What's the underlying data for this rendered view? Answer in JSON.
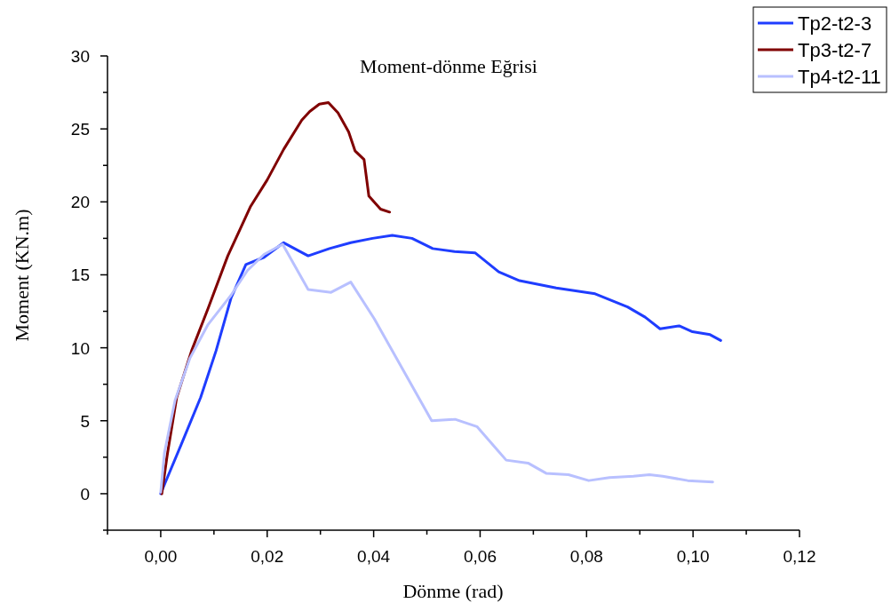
{
  "chart_data": {
    "type": "line",
    "title": "Moment-dönme Eğrisi",
    "xlabel": "Dönme (rad)",
    "ylabel": "Moment (KN.m)",
    "xlim": [
      -0.01,
      0.12
    ],
    "ylim": [
      -2.5,
      30
    ],
    "xticks": [
      {
        "value": -0.01,
        "label": null
      },
      {
        "value": 0,
        "label": "0,00"
      },
      {
        "value": 0.01,
        "label": null
      },
      {
        "value": 0.02,
        "label": "0,02"
      },
      {
        "value": 0.03,
        "label": null
      },
      {
        "value": 0.04,
        "label": "0,04"
      },
      {
        "value": 0.05,
        "label": null
      },
      {
        "value": 0.06,
        "label": "0,06"
      },
      {
        "value": 0.07,
        "label": null
      },
      {
        "value": 0.08,
        "label": "0,08"
      },
      {
        "value": 0.09,
        "label": null
      },
      {
        "value": 0.1,
        "label": "0,10"
      },
      {
        "value": 0.11,
        "label": null
      },
      {
        "value": 0.12,
        "label": "0,12"
      }
    ],
    "yticks": [
      {
        "value": -2.5,
        "label": null
      },
      0,
      {
        "value": 2.5,
        "label": null
      },
      5,
      {
        "value": 7.5,
        "label": null
      },
      10,
      {
        "value": 12.5,
        "label": null
      },
      15,
      {
        "value": 17.5,
        "label": null
      },
      20,
      {
        "value": 22.5,
        "label": null
      },
      25,
      {
        "value": 27.5,
        "label": null
      },
      30
    ],
    "legend": "top right",
    "grid": false,
    "marker": "none",
    "line_style": "solid",
    "series": [
      {
        "name": "Tp2-t2-3",
        "color": "#1f3dff",
        "x": [
          0,
          0.0009,
          0.004,
          0.0075,
          0.0104,
          0.0132,
          0.016,
          0.0194,
          0.0231,
          0.0277,
          0.0317,
          0.0357,
          0.0398,
          0.0435,
          0.0472,
          0.0511,
          0.0552,
          0.0591,
          0.0635,
          0.0674,
          0.0743,
          0.0816,
          0.0877,
          0.091,
          0.0938,
          0.0974,
          0.0999,
          0.1032,
          0.1052
        ],
        "values": [
          0,
          0.8,
          3.5,
          6.6,
          9.8,
          13.4,
          15.7,
          16.2,
          17.2,
          16.3,
          16.8,
          17.2,
          17.5,
          17.7,
          17.5,
          16.8,
          16.6,
          16.5,
          15.2,
          14.6,
          14.1,
          13.7,
          12.8,
          12.1,
          11.3,
          11.5,
          11.1,
          10.9,
          10.5
        ]
      },
      {
        "name": "Tp3-t2-7",
        "color": "#800000",
        "x": [
          0.0002,
          0.0012,
          0.003,
          0.0058,
          0.0089,
          0.0126,
          0.0169,
          0.02,
          0.0231,
          0.0265,
          0.028,
          0.0298,
          0.0315,
          0.0333,
          0.0353,
          0.0365,
          0.0382,
          0.0391,
          0.0413,
          0.043
        ],
        "values": [
          0,
          2.6,
          6.6,
          9.8,
          12.7,
          16.3,
          19.7,
          21.5,
          23.6,
          25.6,
          26.2,
          26.7,
          26.8,
          26.1,
          24.8,
          23.5,
          22.9,
          20.4,
          19.5,
          19.3
        ]
      },
      {
        "name": "Tp4-t2-11",
        "color": "#b8c0ff",
        "x": [
          0,
          0.0007,
          0.0027,
          0.0055,
          0.0089,
          0.0132,
          0.0163,
          0.0194,
          0.0229,
          0.0277,
          0.032,
          0.0357,
          0.0401,
          0.0509,
          0.0553,
          0.0594,
          0.0649,
          0.069,
          0.0724,
          0.0766,
          0.0804,
          0.0843,
          0.0888,
          0.0918,
          0.0943,
          0.099,
          0.1037
        ],
        "values": [
          0.1,
          2.8,
          6.4,
          9.3,
          11.6,
          13.6,
          15.3,
          16.4,
          17.1,
          14.0,
          13.8,
          14.5,
          12.0,
          5.0,
          5.1,
          4.6,
          2.3,
          2.1,
          1.4,
          1.3,
          0.9,
          1.1,
          1.2,
          1.3,
          1.2,
          0.9,
          0.8
        ]
      }
    ]
  }
}
